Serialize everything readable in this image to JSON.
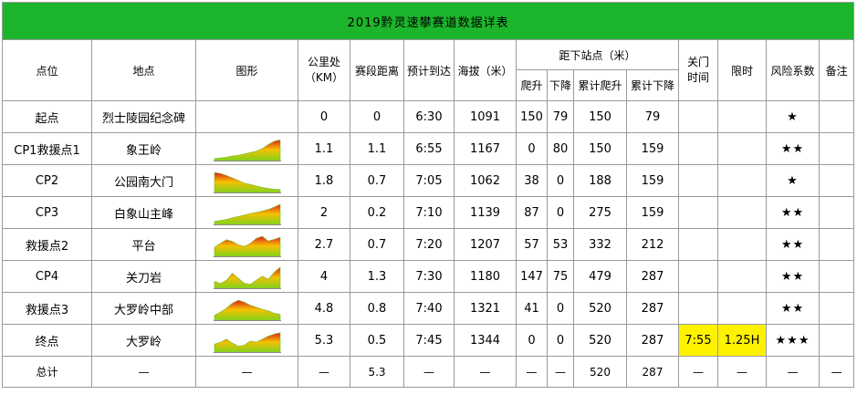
{
  "title": "2019黔灵速攀赛道数据详表",
  "headers": {
    "point": "点位",
    "place": "地点",
    "graph": "图形",
    "km_line1": "公里处",
    "km_line2": "（KM）",
    "segment": "赛段距离",
    "eta": "预计到达",
    "altitude": "海拔（米）",
    "next_group": "距下站点（米）",
    "climb": "爬升",
    "descent": "下降",
    "cum_climb": "累计爬升",
    "cum_descent": "累计下降",
    "close_line1": "关门",
    "close_line2": "时间",
    "limit": "限时",
    "risk": "风险系数",
    "note": "备注"
  },
  "rows": [
    {
      "point": "起点",
      "place": "烈士陵园纪念碑",
      "km": "0",
      "segment": "0",
      "eta": "6:30",
      "altitude": "1091",
      "climb": "150",
      "descent": "79",
      "cum_climb": "150",
      "cum_descent": "79",
      "close": "",
      "limit": "",
      "risk": "★",
      "note": ""
    },
    {
      "point": "CP1救援点1",
      "place": "象王岭",
      "km": "1.1",
      "segment": "1.1",
      "eta": "6:55",
      "altitude": "1167",
      "climb": "0",
      "descent": "80",
      "cum_climb": "150",
      "cum_descent": "159",
      "close": "",
      "limit": "",
      "risk": "★★",
      "note": ""
    },
    {
      "point": "CP2",
      "place": "公园南大门",
      "km": "1.8",
      "segment": "0.7",
      "eta": "7:05",
      "altitude": "1062",
      "climb": "38",
      "descent": "0",
      "cum_climb": "188",
      "cum_descent": "159",
      "close": "",
      "limit": "",
      "risk": "★",
      "note": ""
    },
    {
      "point": "CP3",
      "place": "白象山主峰",
      "km": "2",
      "segment": "0.2",
      "eta": "7:10",
      "altitude": "1139",
      "climb": "87",
      "descent": "0",
      "cum_climb": "275",
      "cum_descent": "159",
      "close": "",
      "limit": "",
      "risk": "★★",
      "note": ""
    },
    {
      "point": "救援点2",
      "place": "平台",
      "km": "2.7",
      "segment": "0.7",
      "eta": "7:20",
      "altitude": "1207",
      "climb": "57",
      "descent": "53",
      "cum_climb": "332",
      "cum_descent": "212",
      "close": "",
      "limit": "",
      "risk": "★★",
      "note": ""
    },
    {
      "point": "CP4",
      "place": "关刀岩",
      "km": "4",
      "segment": "1.3",
      "eta": "7:30",
      "altitude": "1180",
      "climb": "147",
      "descent": "75",
      "cum_climb": "479",
      "cum_descent": "287",
      "close": "",
      "limit": "",
      "risk": "★★",
      "note": ""
    },
    {
      "point": "救援点3",
      "place": "大罗岭中部",
      "km": "4.8",
      "segment": "0.8",
      "eta": "7:40",
      "altitude": "1321",
      "climb": "41",
      "descent": "0",
      "cum_climb": "520",
      "cum_descent": "287",
      "close": "",
      "limit": "",
      "risk": "★★",
      "note": ""
    },
    {
      "point": "终点",
      "place": "大罗岭",
      "km": "5.3",
      "segment": "0.5",
      "eta": "7:45",
      "altitude": "1344",
      "climb": "0",
      "descent": "0",
      "cum_climb": "520",
      "cum_descent": "287",
      "close": "7:55",
      "limit": "1.25H",
      "risk": "★★★",
      "note": ""
    }
  ],
  "total": {
    "point": "总计",
    "place": "—",
    "graph": "—",
    "km": "—",
    "segment": "5.3",
    "eta": "—",
    "altitude": "—",
    "climb": "—",
    "descent": "—",
    "cum_climb": "520",
    "cum_descent": "287",
    "close": "—",
    "limit": "—",
    "risk": "—",
    "note": "—"
  },
  "colors": {
    "title_bg": "#1db52b",
    "eta_header": "#e02020",
    "highlight": "#fff200",
    "profile_top": "#e02020",
    "profile_mid": "#f6c000",
    "profile_low": "#7bd321"
  },
  "profiles": [
    [
      0.05,
      0.08,
      0.12,
      0.18,
      0.22,
      0.28,
      0.35,
      0.42,
      0.55,
      0.75,
      0.92,
      0.98
    ],
    [
      0.95,
      0.9,
      0.8,
      0.68,
      0.55,
      0.42,
      0.35,
      0.28,
      0.2,
      0.15,
      0.12,
      0.1
    ],
    [
      0.1,
      0.15,
      0.2,
      0.28,
      0.35,
      0.42,
      0.5,
      0.55,
      0.62,
      0.7,
      0.82,
      0.95
    ],
    [
      0.4,
      0.6,
      0.78,
      0.7,
      0.52,
      0.45,
      0.6,
      0.85,
      0.95,
      0.72,
      0.8,
      0.9
    ],
    [
      0.3,
      0.2,
      0.35,
      0.7,
      0.45,
      0.2,
      0.15,
      0.35,
      0.55,
      0.4,
      0.75,
      1.0
    ],
    [
      0.2,
      0.35,
      0.55,
      0.8,
      0.95,
      0.85,
      0.7,
      0.6,
      0.5,
      0.42,
      0.3,
      0.25
    ],
    [
      0.35,
      0.45,
      0.6,
      0.4,
      0.25,
      0.3,
      0.5,
      0.45,
      0.6,
      0.75,
      0.85,
      0.92
    ]
  ]
}
